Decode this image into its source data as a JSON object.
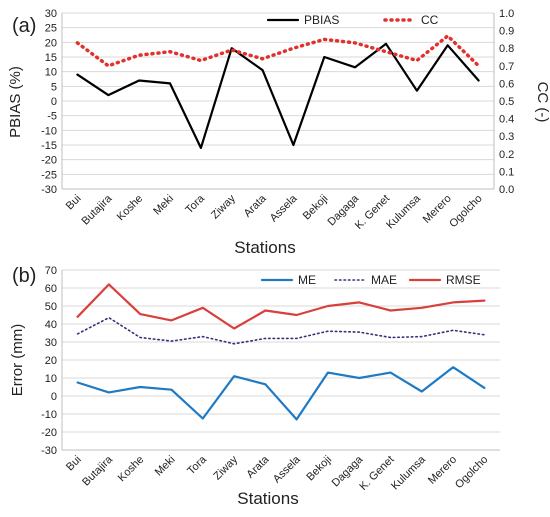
{
  "chart_data": [
    {
      "type": "line",
      "panel_label": "(a)",
      "xlabel": "Stations",
      "ylabel": "PBIAS (%)",
      "y2label": "CC (-)",
      "categories": [
        "Bui",
        "Butajira",
        "Koshe",
        "Meki",
        "Tora",
        "Ziway",
        "Arata",
        "Assela",
        "Bekoji",
        "Dagaga",
        "K. Genet",
        "Kulumsa",
        "Merero",
        "Ogolcho"
      ],
      "ylim": [
        -30,
        30
      ],
      "y2lim": [
        0.0,
        1.0
      ],
      "grid": true,
      "legend_position": "top-right",
      "series": [
        {
          "name": "PBIAS",
          "axis": "left",
          "style": "solid",
          "color": "#000000",
          "values": [
            9,
            2,
            7,
            6,
            -16,
            18,
            10.5,
            -15,
            15,
            11.5,
            19.5,
            3.5,
            19,
            7
          ]
        },
        {
          "name": "CC",
          "axis": "right",
          "style": "dotted",
          "color": "#e2312c",
          "values": [
            0.83,
            0.7,
            0.76,
            0.78,
            0.73,
            0.79,
            0.74,
            0.8,
            0.85,
            0.83,
            0.78,
            0.73,
            0.87,
            0.7
          ]
        }
      ],
      "y_ticks": [
        "30",
        "25",
        "20",
        "15",
        "10",
        "5",
        "0",
        "-5",
        "-10",
        "-15",
        "-20",
        "-25",
        "-30"
      ],
      "y2_ticks": [
        "1.0",
        "0.9",
        "0.8",
        "0.7",
        "0.6",
        "0.5",
        "0.4",
        "0.3",
        "0.2",
        "0.1",
        "0.0"
      ]
    },
    {
      "type": "line",
      "panel_label": "(b)",
      "xlabel": "Stations",
      "ylabel": "Error (mm)",
      "categories": [
        "Bui",
        "Butajira",
        "Koshe",
        "Meki",
        "Tora",
        "Ziway",
        "Arata",
        "Assela",
        "Bekoji",
        "Dagaga",
        "K. Genet",
        "Kulumsa",
        "Merero",
        "Ogolcho"
      ],
      "ylim": [
        -30,
        70
      ],
      "grid": true,
      "legend_position": "top-right",
      "series": [
        {
          "name": "ME",
          "style": "solid",
          "color": "#1f7ac4",
          "values": [
            7.5,
            2,
            5,
            3.5,
            -12.5,
            11,
            6.5,
            -13,
            13,
            10,
            13,
            2.5,
            16,
            4.5
          ]
        },
        {
          "name": "MAE",
          "style": "dotted",
          "color": "#3a2f7a",
          "values": [
            34.5,
            43.5,
            32.5,
            30.5,
            33,
            29,
            32,
            32,
            36,
            35.5,
            32.5,
            33,
            36.5,
            34
          ]
        },
        {
          "name": "RMSE",
          "style": "solid",
          "color": "#d8403c",
          "values": [
            44,
            62,
            45.5,
            42,
            49,
            37.5,
            47.5,
            45,
            50,
            52,
            47.5,
            49,
            52,
            53
          ]
        }
      ],
      "y_ticks": [
        "70",
        "60",
        "50",
        "40",
        "30",
        "20",
        "10",
        "0",
        "-10",
        "-20",
        "-30"
      ]
    }
  ]
}
